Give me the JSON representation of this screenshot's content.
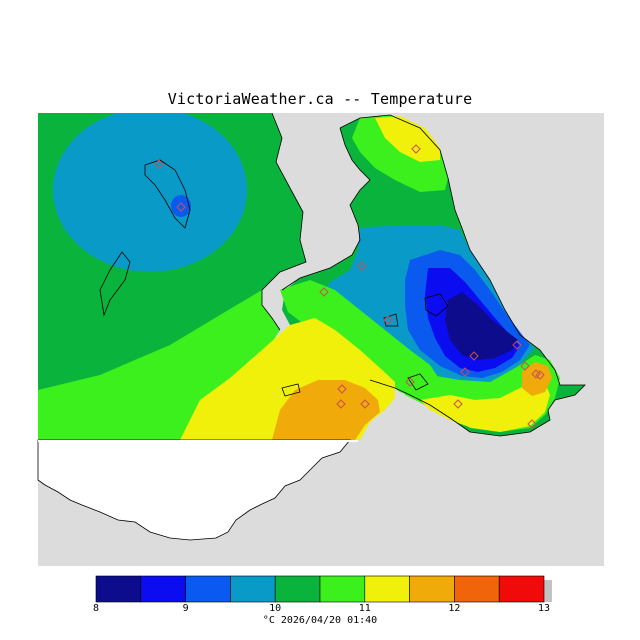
{
  "title": "VictoriaWeather.ca -- Temperature",
  "legend": {
    "ticks": [
      "8",
      "9",
      "10",
      "11",
      "12",
      "13"
    ],
    "colors": [
      "#0c0c8c",
      "#0c0cf0",
      "#0a5af0",
      "#0a9ac8",
      "#0ab43c",
      "#3cf01e",
      "#f0f00a",
      "#f0aa0a",
      "#f0640a",
      "#f00a0a"
    ],
    "unit": "°C",
    "timestamp": "2026/04/20 01:40",
    "caption": "°C  2026/04/20 01:40"
  },
  "colors": {
    "ocean": "#dcdcdc",
    "land_unmapped": "#ffffff",
    "station_marker": "#c85050"
  }
}
